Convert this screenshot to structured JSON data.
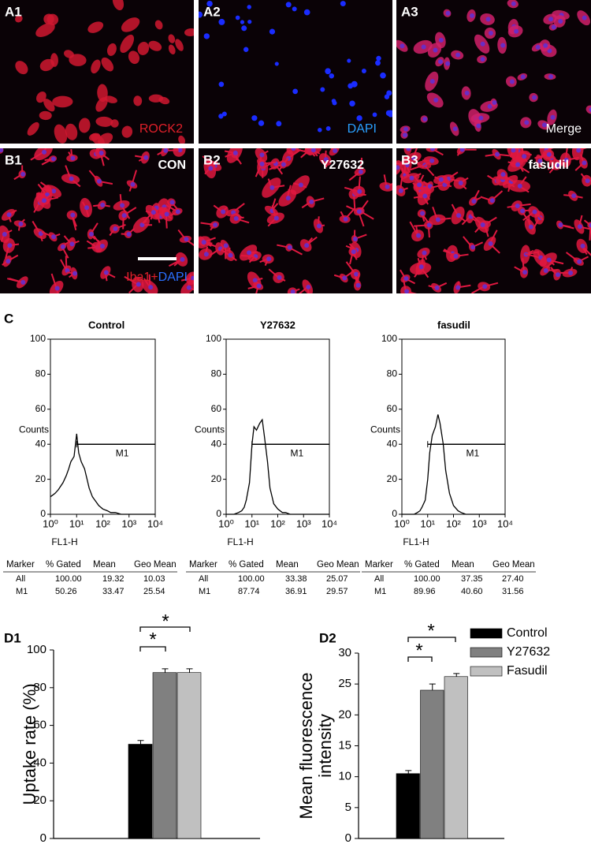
{
  "panels": [
    {
      "label": "A1",
      "caption": "ROCK2"
    },
    {
      "label": "A2",
      "caption": "DAPI"
    },
    {
      "label": "A3",
      "caption": "Merge"
    },
    {
      "label": "B1",
      "caption": "CON"
    },
    {
      "label": "B2",
      "caption": "Y27632"
    },
    {
      "label": "B3",
      "caption": "fasudil"
    }
  ],
  "stain_caption": [
    "Iba1+",
    "DAPI"
  ],
  "section_labels": [
    "C",
    "D1",
    "D2"
  ],
  "tables": [
    {
      "header": [
        "Marker",
        "% Gated",
        "Mean",
        "Geo Mean"
      ],
      "rows": [
        [
          "All",
          "100.00",
          "19.32",
          "10.03"
        ],
        [
          "M1",
          "50.26",
          "33.47",
          "25.54"
        ]
      ]
    },
    {
      "header": [
        "Marker",
        "% Gated",
        "Mean",
        "Geo Mean"
      ],
      "rows": [
        [
          "All",
          "100.00",
          "33.38",
          "25.07"
        ],
        [
          "M1",
          "87.74",
          "36.91",
          "29.57"
        ]
      ]
    },
    {
      "header": [
        "Marker",
        "% Gated",
        "Mean",
        "Geo Mean"
      ],
      "rows": [
        [
          "All",
          "100.00",
          "37.35",
          "27.40"
        ],
        [
          "M1",
          "89.96",
          "40.60",
          "31.56"
        ]
      ]
    }
  ],
  "chart_data": [
    {
      "type": "line",
      "title": "Control",
      "xlabel": "FL1-H",
      "ylabel": "Counts",
      "xscale": "log",
      "color": "#000000",
      "x": [
        1,
        1.5,
        2,
        3,
        4,
        5,
        6,
        8,
        10,
        12,
        15,
        20,
        25,
        30,
        40,
        50,
        70,
        100,
        150,
        200,
        300,
        500,
        1000,
        3000,
        10000
      ],
      "values": [
        10,
        12,
        14,
        18,
        22,
        26,
        30,
        33,
        46,
        35,
        30,
        26,
        20,
        15,
        10,
        8,
        5,
        3,
        2,
        1,
        1,
        0,
        0,
        0,
        0
      ],
      "xlim": [
        1,
        10000
      ],
      "xticks": [
        {
          "value": 1,
          "label": "10⁰"
        },
        {
          "value": 10,
          "label": "10¹"
        },
        {
          "value": 100,
          "label": "10²"
        },
        {
          "value": 1000,
          "label": "10³"
        },
        {
          "value": 10000,
          "label": "10⁴"
        }
      ],
      "ylim": [
        0,
        100
      ],
      "yticks": [
        0,
        20,
        40,
        60,
        80,
        100
      ],
      "marker": {
        "label": "M1",
        "y": 40,
        "x": [
          10,
          10000
        ]
      }
    },
    {
      "type": "line",
      "title": "Y27632",
      "xlabel": "FL1-H",
      "ylabel": "Counts",
      "xscale": "log",
      "color": "#000000",
      "x": [
        1,
        1.5,
        2,
        3,
        4,
        5,
        6,
        8,
        10,
        12,
        15,
        20,
        25,
        30,
        40,
        50,
        70,
        100,
        150,
        200,
        300,
        500,
        1000,
        3000,
        10000
      ],
      "values": [
        0,
        0,
        0,
        1,
        2,
        4,
        8,
        18,
        40,
        50,
        48,
        52,
        54,
        45,
        30,
        15,
        6,
        3,
        1,
        1,
        0,
        0,
        0,
        0,
        0
      ],
      "xlim": [
        1,
        10000
      ],
      "xticks": [
        {
          "value": 1,
          "label": "10⁰"
        },
        {
          "value": 10,
          "label": "10¹"
        },
        {
          "value": 100,
          "label": "10²"
        },
        {
          "value": 1000,
          "label": "10³"
        },
        {
          "value": 10000,
          "label": "10⁴"
        }
      ],
      "ylim": [
        0,
        100
      ],
      "yticks": [
        0,
        20,
        40,
        60,
        80,
        100
      ],
      "marker": {
        "label": "M1",
        "y": 40,
        "x": [
          10,
          10000
        ]
      }
    },
    {
      "type": "line",
      "title": "fasudil",
      "xlabel": "FL1-H",
      "ylabel": "Counts",
      "xscale": "log",
      "color": "#000000",
      "x": [
        1,
        1.5,
        2,
        3,
        4,
        5,
        6,
        8,
        10,
        12,
        15,
        20,
        25,
        30,
        40,
        50,
        70,
        100,
        150,
        200,
        300,
        500,
        1000,
        3000,
        10000
      ],
      "values": [
        0,
        0,
        0,
        0,
        1,
        2,
        4,
        8,
        20,
        35,
        45,
        50,
        57,
        52,
        40,
        25,
        12,
        5,
        2,
        1,
        0,
        0,
        0,
        0,
        0
      ],
      "xlim": [
        1,
        10000
      ],
      "xticks": [
        {
          "value": 1,
          "label": "10⁰"
        },
        {
          "value": 10,
          "label": "10¹"
        },
        {
          "value": 100,
          "label": "10²"
        },
        {
          "value": 1000,
          "label": "10³"
        },
        {
          "value": 10000,
          "label": "10⁴"
        }
      ],
      "ylim": [
        0,
        100
      ],
      "yticks": [
        0,
        20,
        40,
        60,
        80,
        100
      ],
      "marker": {
        "label": "M1",
        "y": 40,
        "x": [
          10,
          10000
        ]
      }
    },
    {
      "type": "bar",
      "ylabel": [
        "Uptake rate (%)"
      ],
      "series": [
        {
          "color": "#000000",
          "values": [
            50
          ],
          "errors": [
            2
          ]
        },
        {
          "color": "#808080",
          "values": [
            88
          ],
          "errors": [
            2
          ]
        },
        {
          "color": "#c0c0c0",
          "values": [
            88
          ],
          "errors": [
            2
          ]
        }
      ],
      "ylim": [
        0,
        100
      ],
      "yticks": [
        0,
        20,
        40,
        60,
        80,
        100
      ],
      "annotations": [
        "*",
        "*"
      ]
    },
    {
      "type": "bar",
      "ylabel": [
        "Mean fluorescence",
        "intensity"
      ],
      "series": [
        {
          "name": "Control",
          "color": "#000000",
          "values": [
            10.5
          ],
          "errors": [
            0.5
          ]
        },
        {
          "name": "Y27632",
          "color": "#808080",
          "values": [
            24
          ],
          "errors": [
            1
          ]
        },
        {
          "name": "Fasudil",
          "color": "#c0c0c0",
          "values": [
            26.2
          ],
          "errors": [
            0.5
          ]
        }
      ],
      "ylim": [
        0,
        30
      ],
      "yticks": [
        0,
        5,
        10,
        15,
        20,
        25,
        30
      ],
      "annotations": [
        "*",
        "*"
      ]
    }
  ]
}
